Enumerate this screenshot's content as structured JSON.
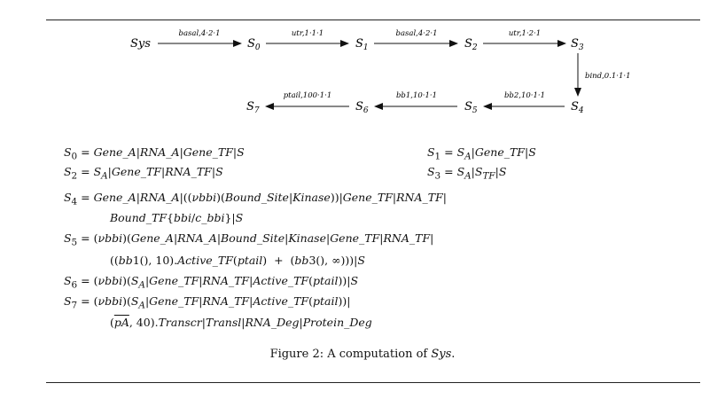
{
  "diagram": {
    "states": [
      "Sys",
      "S0",
      "S1",
      "S2",
      "S3",
      "S4",
      "S5",
      "S6",
      "S7"
    ],
    "transitions": [
      {
        "from": "Sys",
        "to": "S0",
        "label": "basal,4·2·1"
      },
      {
        "from": "S0",
        "to": "S1",
        "label": "utr,1·1·1"
      },
      {
        "from": "S1",
        "to": "S2",
        "label": "basal,4·2·1"
      },
      {
        "from": "S2",
        "to": "S3",
        "label": "utr,1·2·1"
      },
      {
        "from": "S3",
        "to": "S4",
        "label": "bind,0.1·1·1"
      },
      {
        "from": "S4",
        "to": "S5",
        "label": "bb2,10·1·1"
      },
      {
        "from": "S5",
        "to": "S6",
        "label": "bb1,10·1·1"
      },
      {
        "from": "S6",
        "to": "S7",
        "label": "ptail,100·1·1"
      }
    ]
  },
  "equations": {
    "s0": "S0 = Gene_A|RNA_A|Gene_TF|S",
    "s1": "S1 = SA|Gene_TF|S",
    "s2": "S2 = SA|Gene_TF|RNA_TF|S",
    "s3": "S3 = SA|STF|S",
    "s4_line1": "S4 = Gene_A|RNA_A|((νbbi)(Bound_Site|Kinase))|Gene_TF|RNA_TF|",
    "s4_line2": "Bound_TF{bbi/c_bbi}|S",
    "s5_line1": "S5 = (νbbi)(Gene_A|RNA_A|Bound_Site|Kinase|Gene_TF|RNA_TF|",
    "s5_line2": "((bb1(),10).Active_TF(ptail) + (bb3(),∞)))|S",
    "s6": "S6 = (νbbi)(SA|Gene_TF|RNA_TF|Active_TF(ptail))|S",
    "s7_line1": "S7 = (νbbi)(SA|Gene_TF|RNA_TF|Active_TF(ptail))|",
    "s7_line2": "(pA,40).Transcr|Transl|RNA_Deg|Protein_Deg"
  },
  "caption": {
    "prefix": "Figure 2: A computation of ",
    "subject": "Sys",
    "suffix": "."
  }
}
